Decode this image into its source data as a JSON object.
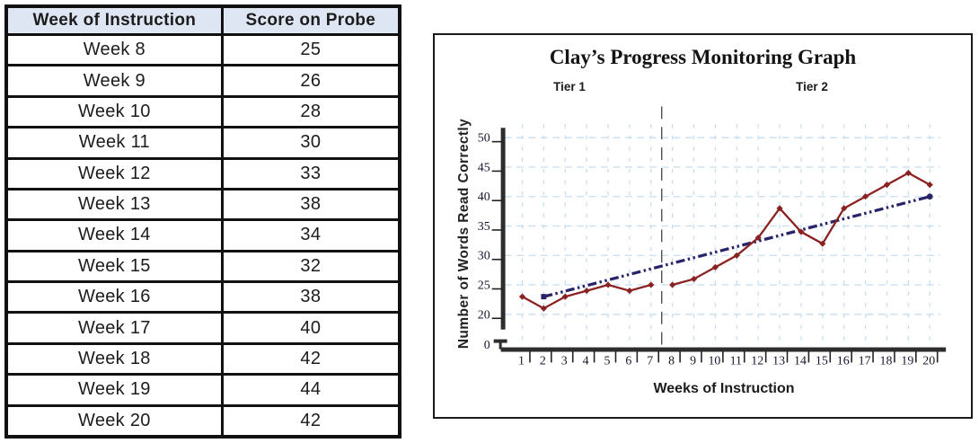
{
  "table": {
    "headers": [
      "Week of Instruction",
      "Score on Probe"
    ],
    "rows": [
      [
        "Week 8",
        "25"
      ],
      [
        "Week 9",
        "26"
      ],
      [
        "Week 10",
        "28"
      ],
      [
        "Week 11",
        "30"
      ],
      [
        "Week 12",
        "33"
      ],
      [
        "Week 13",
        "38"
      ],
      [
        "Week 14",
        "34"
      ],
      [
        "Week 15",
        "32"
      ],
      [
        "Week 16",
        "38"
      ],
      [
        "Week 17",
        "40"
      ],
      [
        "Week 18",
        "42"
      ],
      [
        "Week 19",
        "44"
      ],
      [
        "Week 20",
        "42"
      ]
    ],
    "header_bg": "#dee5f3",
    "border_color": "#111111"
  },
  "chart_data": {
    "type": "line",
    "title": "Clay’s Progress Monitoring Graph",
    "xlabel": "Weeks of Instruction",
    "ylabel": "Number of Words Read Correctly",
    "x": [
      1,
      2,
      3,
      4,
      5,
      6,
      7,
      8,
      9,
      10,
      11,
      12,
      13,
      14,
      15,
      16,
      17,
      18,
      19,
      20
    ],
    "series": [
      {
        "name": "weekly-scores",
        "values": [
          23,
          21,
          23,
          24,
          25,
          24,
          25,
          25,
          26,
          28,
          30,
          33,
          38,
          34,
          32,
          38,
          40,
          42,
          44,
          42
        ],
        "break_after_x": 7,
        "color": "#8b2222",
        "marker": "diamond"
      },
      {
        "name": "aimline",
        "points": [
          [
            2,
            23
          ],
          [
            20,
            40
          ]
        ],
        "color": "#29246a",
        "style": "dash-dot-dot"
      }
    ],
    "y_ticks": [
      0,
      20,
      25,
      30,
      35,
      40,
      45,
      50
    ],
    "x_ticks": [
      1,
      2,
      3,
      4,
      5,
      6,
      7,
      8,
      9,
      10,
      11,
      12,
      13,
      14,
      15,
      16,
      17,
      18,
      19,
      20
    ],
    "axis_break_between": [
      0,
      20
    ],
    "dividers": [
      {
        "x": 7.5,
        "style": "long-dash"
      }
    ],
    "annotations": [
      {
        "text": "Tier 1",
        "region": "weeks 1-7"
      },
      {
        "text": "Tier 2",
        "region": "weeks 8-20"
      }
    ],
    "grid": {
      "on": true,
      "color": "#c7def1",
      "vertical_every_week": true,
      "horizontal_every": 5
    },
    "colors": {
      "axis": "#2d2d2d",
      "tier_divider": "#4f4f4f",
      "tick_text": "#15152e"
    },
    "legend_position": "none"
  }
}
